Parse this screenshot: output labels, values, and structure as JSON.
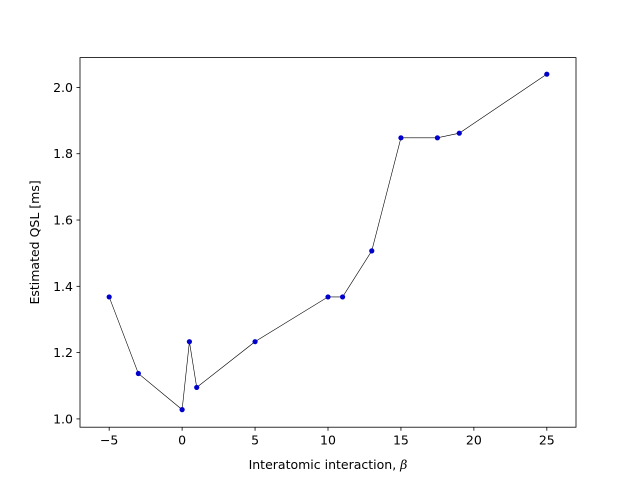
{
  "chart_data": {
    "type": "line",
    "title": "",
    "xlabel_text": "Interatomic interaction, ",
    "xlabel_symbol": "β",
    "ylabel": "Estimated QSL [ms]",
    "xlim": [
      -7.0,
      27.0
    ],
    "ylim": [
      0.975,
      2.09
    ],
    "xticks": [
      -5,
      0,
      5,
      10,
      15,
      20,
      25
    ],
    "xtick_labels": [
      "−5",
      "0",
      "5",
      "10",
      "15",
      "20",
      "25"
    ],
    "yticks": [
      1.0,
      1.2,
      1.4,
      1.6,
      1.8,
      2.0
    ],
    "ytick_labels": [
      "1.0",
      "1.2",
      "1.4",
      "1.6",
      "1.8",
      "2.0"
    ],
    "grid": false,
    "series": [
      {
        "x": [
          -5,
          -3,
          0,
          0.5,
          1,
          5,
          10,
          11,
          13,
          15,
          17.5,
          19,
          25
        ],
        "y": [
          1.368,
          1.137,
          1.028,
          1.233,
          1.095,
          1.233,
          1.368,
          1.368,
          1.507,
          1.848,
          1.848,
          1.862,
          2.04
        ],
        "line_color": "#000000",
        "marker_color": "#0000cc"
      }
    ]
  }
}
